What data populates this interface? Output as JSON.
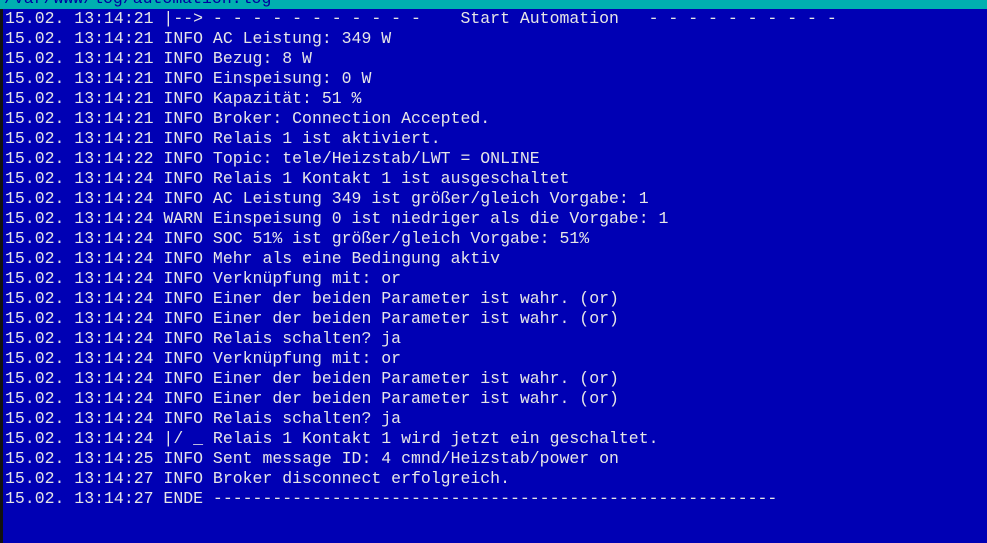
{
  "title": "/var/www/log/automation.log",
  "colors": {
    "background": "#0000b4",
    "titlebar": "#00b0b0",
    "text": "#e6e6e6"
  },
  "lines": [
    "15.02. 13:14:21 |--> - - - - - - - - - - -    Start Automation   - - - - - - - - - -",
    "15.02. 13:14:21 INFO AC Leistung: 349 W",
    "15.02. 13:14:21 INFO Bezug: 8 W",
    "15.02. 13:14:21 INFO Einspeisung: 0 W",
    "15.02. 13:14:21 INFO Kapazität: 51 %",
    "15.02. 13:14:21 INFO Broker: Connection Accepted.",
    "15.02. 13:14:21 INFO Relais 1 ist aktiviert.",
    "15.02. 13:14:22 INFO Topic: tele/Heizstab/LWT = ONLINE",
    "15.02. 13:14:24 INFO Relais 1 Kontakt 1 ist ausgeschaltet",
    "15.02. 13:14:24 INFO AC Leistung 349 ist größer/gleich Vorgabe: 1",
    "15.02. 13:14:24 WARN Einspeisung 0 ist niedriger als die Vorgabe: 1",
    "15.02. 13:14:24 INFO SOC 51% ist größer/gleich Vorgabe: 51%",
    "15.02. 13:14:24 INFO Mehr als eine Bedingung aktiv",
    "15.02. 13:14:24 INFO Verknüpfung mit: or",
    "15.02. 13:14:24 INFO Einer der beiden Parameter ist wahr. (or)",
    "15.02. 13:14:24 INFO Einer der beiden Parameter ist wahr. (or)",
    "15.02. 13:14:24 INFO Relais schalten? ja",
    "15.02. 13:14:24 INFO Verknüpfung mit: or",
    "15.02. 13:14:24 INFO Einer der beiden Parameter ist wahr. (or)",
    "15.02. 13:14:24 INFO Einer der beiden Parameter ist wahr. (or)",
    "15.02. 13:14:24 INFO Relais schalten? ja",
    "15.02. 13:14:24 |/ _ Relais 1 Kontakt 1 wird jetzt ein geschaltet.",
    "15.02. 13:14:25 INFO Sent message ID: 4 cmnd/Heizstab/power on",
    "15.02. 13:14:27 INFO Broker disconnect erfolgreich.",
    "15.02. 13:14:27 ENDE ---------------------------------------------------------"
  ]
}
